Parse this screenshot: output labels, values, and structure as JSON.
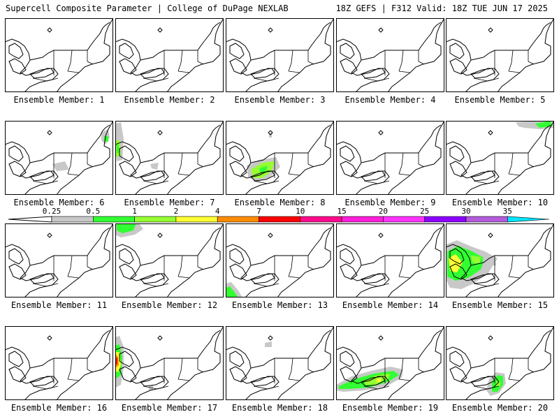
{
  "header": {
    "title": "Supercell Composite Parameter | College of DuPage NEXLAB",
    "run_info": "18Z GEFS | F312 Valid: 18Z TUE JUN 17 2025"
  },
  "member_label_prefix": "Ensemble Member:",
  "members": [
    {
      "label": "Ensemble Member: 1",
      "blobs": []
    },
    {
      "label": "Ensemble Member: 2",
      "blobs": []
    },
    {
      "label": "Ensemble Member: 3",
      "blobs": []
    },
    {
      "label": "Ensemble Member: 4",
      "blobs": []
    },
    {
      "label": "Ensemble Member: 5",
      "blobs": []
    },
    {
      "label": "Ensemble Member: 6",
      "blobs": [
        {
          "pts": [
            [
              138,
              16
            ],
            [
              148,
              12
            ],
            [
              150,
              24
            ],
            [
              144,
              34
            ],
            [
              138,
              28
            ]
          ],
          "c": "gray"
        },
        {
          "pts": [
            [
              142,
              22
            ],
            [
              148,
              22
            ],
            [
              148,
              30
            ],
            [
              143,
              30
            ]
          ],
          "c": "green"
        },
        {
          "pts": [
            [
              68,
              62
            ],
            [
              86,
              58
            ],
            [
              92,
              70
            ],
            [
              74,
              72
            ]
          ],
          "c": "gray"
        }
      ]
    },
    {
      "label": "Ensemble Member: 7",
      "blobs": [
        {
          "pts": [
            [
              0,
              4
            ],
            [
              8,
              2
            ],
            [
              12,
              26
            ],
            [
              10,
              56
            ],
            [
              2,
              58
            ],
            [
              0,
              40
            ]
          ],
          "c": "gray"
        },
        {
          "pts": [
            [
              0,
              28
            ],
            [
              6,
              28
            ],
            [
              8,
              50
            ],
            [
              0,
              52
            ]
          ],
          "c": "lgreen"
        },
        {
          "pts": [
            [
              2,
              34
            ],
            [
              5,
              34
            ],
            [
              5,
              46
            ],
            [
              2,
              46
            ]
          ],
          "c": "green"
        },
        {
          "pts": [
            [
              50,
              62
            ],
            [
              62,
              60
            ],
            [
              60,
              70
            ],
            [
              52,
              68
            ]
          ],
          "c": "gray"
        }
      ]
    },
    {
      "label": "Ensemble Member: 8",
      "blobs": [
        {
          "pts": [
            [
              30,
              64
            ],
            [
              48,
              56
            ],
            [
              72,
              52
            ],
            [
              78,
              66
            ],
            [
              62,
              82
            ],
            [
              44,
              88
            ],
            [
              32,
              80
            ]
          ],
          "c": "gray"
        },
        {
          "pts": [
            [
              36,
              70
            ],
            [
              52,
              60
            ],
            [
              70,
              58
            ],
            [
              66,
              72
            ],
            [
              52,
              82
            ],
            [
              40,
              82
            ]
          ],
          "c": "lgreen"
        },
        {
          "pts": [
            [
              48,
              68
            ],
            [
              60,
              64
            ],
            [
              58,
              74
            ],
            [
              50,
              76
            ]
          ],
          "c": "green"
        },
        {
          "pts": [
            [
              62,
              18
            ],
            [
              66,
              16
            ],
            [
              66,
              24
            ],
            [
              62,
              24
            ]
          ],
          "c": "gray"
        }
      ]
    },
    {
      "label": "Ensemble Member: 9",
      "blobs": []
    },
    {
      "label": "Ensemble Member: 10",
      "blobs": [
        {
          "pts": [
            [
              100,
              2
            ],
            [
              130,
              0
            ],
            [
              156,
              2
            ],
            [
              156,
              10
            ],
            [
              136,
              12
            ],
            [
              112,
              10
            ],
            [
              104,
              8
            ]
          ],
          "c": "gray"
        },
        {
          "pts": [
            [
              128,
              4
            ],
            [
              150,
              0
            ],
            [
              152,
              8
            ],
            [
              134,
              10
            ]
          ],
          "c": "green"
        }
      ]
    },
    {
      "label": "Ensemble Member: 11",
      "blobs": []
    },
    {
      "label": "Ensemble Member: 12",
      "blobs": [
        {
          "pts": [
            [
              0,
              0
            ],
            [
              34,
              0
            ],
            [
              40,
              8
            ],
            [
              28,
              16
            ],
            [
              8,
              20
            ],
            [
              0,
              16
            ]
          ],
          "c": "gray"
        },
        {
          "pts": [
            [
              2,
              0
            ],
            [
              30,
              0
            ],
            [
              26,
              10
            ],
            [
              10,
              14
            ],
            [
              2,
              10
            ]
          ],
          "c": "green"
        }
      ]
    },
    {
      "label": "Ensemble Member: 13",
      "blobs": [
        {
          "pts": [
            [
              0,
              86
            ],
            [
              8,
              84
            ],
            [
              18,
              96
            ],
            [
              24,
              106
            ],
            [
              0,
              106
            ]
          ],
          "c": "gray"
        },
        {
          "pts": [
            [
              0,
              92
            ],
            [
              6,
              90
            ],
            [
              14,
              100
            ],
            [
              18,
              106
            ],
            [
              0,
              106
            ]
          ],
          "c": "green"
        }
      ]
    },
    {
      "label": "Ensemble Member: 14",
      "blobs": []
    },
    {
      "label": "Ensemble Member: 15",
      "blobs": [
        {
          "pts": [
            [
              0,
              30
            ],
            [
              16,
              24
            ],
            [
              34,
              32
            ],
            [
              56,
              40
            ],
            [
              74,
              50
            ],
            [
              60,
              72
            ],
            [
              40,
              86
            ],
            [
              22,
              94
            ],
            [
              6,
              92
            ],
            [
              0,
              80
            ]
          ],
          "c": "gray"
        },
        {
          "pts": [
            [
              2,
              40
            ],
            [
              18,
              32
            ],
            [
              38,
              40
            ],
            [
              56,
              50
            ],
            [
              50,
              66
            ],
            [
              32,
              78
            ],
            [
              14,
              82
            ],
            [
              2,
              76
            ]
          ],
          "c": "green"
        },
        {
          "pts": [
            [
              4,
              50
            ],
            [
              14,
              44
            ],
            [
              24,
              56
            ],
            [
              16,
              70
            ],
            [
              6,
              68
            ]
          ],
          "c": "yellow"
        },
        {
          "pts": [
            [
              36,
              46
            ],
            [
              50,
              48
            ],
            [
              48,
              58
            ],
            [
              38,
              56
            ]
          ],
          "c": "lgreen"
        },
        {
          "pts": [
            [
              52,
              50
            ],
            [
              70,
              48
            ],
            [
              72,
              60
            ],
            [
              56,
              60
            ]
          ],
          "c": "gray"
        }
      ]
    },
    {
      "label": "Ensemble Member: 16",
      "blobs": []
    },
    {
      "label": "Ensemble Member: 17",
      "blobs": [
        {
          "pts": [
            [
              0,
              16
            ],
            [
              6,
              14
            ],
            [
              12,
              30
            ],
            [
              12,
              60
            ],
            [
              8,
              84
            ],
            [
              0,
              88
            ]
          ],
          "c": "gray"
        },
        {
          "pts": [
            [
              0,
              28
            ],
            [
              6,
              26
            ],
            [
              10,
              44
            ],
            [
              8,
              70
            ],
            [
              0,
              76
            ]
          ],
          "c": "green"
        },
        {
          "pts": [
            [
              0,
              36
            ],
            [
              6,
              38
            ],
            [
              8,
              56
            ],
            [
              4,
              66
            ],
            [
              0,
              64
            ]
          ],
          "c": "yellow"
        },
        {
          "pts": [
            [
              0,
              40
            ],
            [
              4,
              44
            ],
            [
              5,
              56
            ],
            [
              0,
              60
            ]
          ],
          "c": "orange"
        },
        {
          "pts": [
            [
              0,
              44
            ],
            [
              3,
              46
            ],
            [
              3,
              54
            ],
            [
              0,
              56
            ]
          ],
          "c": "red"
        },
        {
          "pts": [
            [
              48,
              86
            ],
            [
              54,
              84
            ],
            [
              54,
              92
            ],
            [
              48,
              92
            ]
          ],
          "c": "gray"
        }
      ]
    },
    {
      "label": "Ensemble Member: 18",
      "blobs": [
        {
          "pts": [
            [
              56,
              24
            ],
            [
              66,
              22
            ],
            [
              66,
              30
            ],
            [
              56,
              30
            ]
          ],
          "c": "gray"
        }
      ]
    },
    {
      "label": "Ensemble Member: 19",
      "blobs": [
        {
          "pts": [
            [
              0,
              84
            ],
            [
              22,
              72
            ],
            [
              50,
              64
            ],
            [
              78,
              58
            ],
            [
              96,
              62
            ],
            [
              94,
              74
            ],
            [
              72,
              86
            ],
            [
              40,
              92
            ],
            [
              10,
              94
            ],
            [
              0,
              92
            ]
          ],
          "c": "gray"
        },
        {
          "pts": [
            [
              4,
              86
            ],
            [
              26,
              76
            ],
            [
              54,
              68
            ],
            [
              82,
              64
            ],
            [
              90,
              70
            ],
            [
              74,
              80
            ],
            [
              46,
              88
            ],
            [
              18,
              90
            ],
            [
              4,
              90
            ]
          ],
          "c": "green"
        },
        {
          "pts": [
            [
              40,
              78
            ],
            [
              60,
              70
            ],
            [
              78,
              68
            ],
            [
              74,
              76
            ],
            [
              56,
              84
            ],
            [
              42,
              84
            ]
          ],
          "c": "lgreen"
        },
        {
          "pts": [
            [
              58,
              76
            ],
            [
              64,
              74
            ],
            [
              64,
              80
            ],
            [
              58,
              80
            ]
          ],
          "c": "yellow"
        }
      ]
    },
    {
      "label": "Ensemble Member: 20",
      "blobs": [
        {
          "pts": [
            [
              62,
              76
            ],
            [
              72,
              66
            ],
            [
              84,
              68
            ],
            [
              86,
              82
            ],
            [
              76,
              96
            ],
            [
              64,
              100
            ],
            [
              58,
              92
            ]
          ],
          "c": "gray"
        },
        {
          "pts": [
            [
              66,
              80
            ],
            [
              74,
              70
            ],
            [
              82,
              72
            ],
            [
              82,
              84
            ],
            [
              74,
              94
            ],
            [
              66,
              94
            ]
          ],
          "c": "green"
        },
        {
          "pts": [
            [
              72,
              80
            ],
            [
              78,
              78
            ],
            [
              78,
              86
            ],
            [
              72,
              86
            ]
          ],
          "c": "lgreen"
        }
      ]
    }
  ],
  "colorbar": {
    "thresholds": [
      "0.25",
      "0.5",
      "1",
      "2",
      "4",
      "7",
      "10",
      "15",
      "20",
      "25",
      "30",
      "35"
    ],
    "colors": [
      "#c8c8c8",
      "#32ff32",
      "#96ff32",
      "#ffff32",
      "#ff8c00",
      "#ff0000",
      "#ff0a8c",
      "#ff1edc",
      "#ff32ff",
      "#8c00ff",
      "#b45adc",
      "#00e6ff"
    ]
  }
}
